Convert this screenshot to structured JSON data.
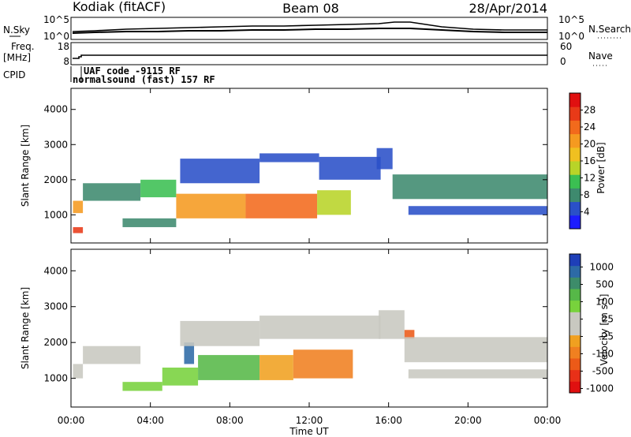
{
  "header": {
    "station": "Kodiak (fitACF)",
    "beam": "Beam 08",
    "date": "28/Apr/2014"
  },
  "noise_panel": {
    "left_label": "N.Sky",
    "right_label": "N.Search",
    "left_ticks": [
      "10^5",
      "10^0"
    ],
    "right_ticks": [
      "10^5",
      "10^0"
    ]
  },
  "freq_panel": {
    "left_label_1": "Freq.",
    "left_label_2": "[MHz]",
    "right_label": "Nave",
    "left_ticks": [
      "18",
      "8"
    ],
    "right_ticks": [
      "60",
      "0"
    ]
  },
  "cpid_panel": {
    "label": "CPID",
    "line1": "UAF code -9115 RF",
    "line2": "normalsound (fast) 157 RF"
  },
  "chart_data": [
    {
      "type": "heatmap",
      "quantity": "power",
      "ylabel": "Slant Range [km]",
      "ylim": [
        200,
        4600
      ],
      "yticks": [
        1000,
        2000,
        3000,
        4000
      ],
      "colorbar_label": "Power [dB]",
      "colorbar_ticks": [
        4,
        8,
        12,
        16,
        20,
        24,
        28
      ],
      "colorbar_colors": [
        "#1c1cff",
        "#2a50c8",
        "#3e8a6e",
        "#3bbf52",
        "#b8d428",
        "#f0c020",
        "#f59a20",
        "#f26a1c",
        "#e83a18",
        "#e01010"
      ],
      "regions": [
        {
          "x": [
            0.1,
            0.6
          ],
          "y": [
            1050,
            1400
          ],
          "level": 22
        },
        {
          "x": [
            0.1,
            0.6
          ],
          "y": [
            480,
            650
          ],
          "level": 27
        },
        {
          "x": [
            0.6,
            3.5
          ],
          "y": [
            1400,
            1900
          ],
          "level": 8
        },
        {
          "x": [
            3.5,
            5.3
          ],
          "y": [
            1500,
            2000
          ],
          "level": 12
        },
        {
          "x": [
            2.6,
            5.3
          ],
          "y": [
            650,
            900
          ],
          "level": 10
        },
        {
          "x": [
            5.3,
            8.8
          ],
          "y": [
            900,
            1600
          ],
          "level": 22
        },
        {
          "x": [
            8.8,
            12.4
          ],
          "y": [
            900,
            1600
          ],
          "level": 24
        },
        {
          "x": [
            12.4,
            14.1
          ],
          "y": [
            1000,
            1700
          ],
          "level": 14
        },
        {
          "x": [
            5.5,
            9.5
          ],
          "y": [
            1900,
            2600
          ],
          "level": 6
        },
        {
          "x": [
            9.5,
            12.5
          ],
          "y": [
            2500,
            2750
          ],
          "level": 7
        },
        {
          "x": [
            12.5,
            15.6
          ],
          "y": [
            2000,
            2650
          ],
          "level": 6
        },
        {
          "x": [
            15.4,
            16.2
          ],
          "y": [
            2300,
            2900
          ],
          "level": 6
        },
        {
          "x": [
            16.2,
            24.0
          ],
          "y": [
            1450,
            2150
          ],
          "level": 8
        },
        {
          "x": [
            17.0,
            24.0
          ],
          "y": [
            1000,
            1250
          ],
          "level": 7
        }
      ]
    },
    {
      "type": "heatmap",
      "quantity": "velocity",
      "ylabel": "Slant Range [km]",
      "ylim": [
        200,
        4600
      ],
      "yticks": [
        1000,
        2000,
        3000,
        4000
      ],
      "colorbar_label": "Velocity [m s^-1]",
      "colorbar_ticks": [
        "1000",
        "500",
        "100",
        "25",
        "-25",
        "-100",
        "-500",
        "-1000"
      ],
      "colorbar_colors": [
        "#1e3fb8",
        "#2d6aa6",
        "#3d8c6a",
        "#56b848",
        "#78d23c",
        "#c8c8c0",
        "#c8c8c0",
        "#f0a020",
        "#f08020",
        "#ec5a18",
        "#e83018",
        "#e01010"
      ],
      "regions": [
        {
          "x": [
            0.1,
            0.6
          ],
          "y": [
            1000,
            1400
          ],
          "velocity": 0
        },
        {
          "x": [
            0.6,
            3.5
          ],
          "y": [
            1400,
            1900
          ],
          "velocity": 0
        },
        {
          "x": [
            2.6,
            4.6
          ],
          "y": [
            650,
            900
          ],
          "velocity": 150
        },
        {
          "x": [
            4.6,
            6.4
          ],
          "y": [
            800,
            1300
          ],
          "velocity": 200
        },
        {
          "x": [
            5.7,
            6.2
          ],
          "y": [
            1400,
            2000
          ],
          "velocity": 900
        },
        {
          "x": [
            6.4,
            9.5
          ],
          "y": [
            950,
            1650
          ],
          "velocity": 350
        },
        {
          "x": [
            9.5,
            11.2
          ],
          "y": [
            950,
            1650
          ],
          "velocity": -100
        },
        {
          "x": [
            11.2,
            14.2
          ],
          "y": [
            1000,
            1800
          ],
          "velocity": -300
        },
        {
          "x": [
            5.5,
            9.5
          ],
          "y": [
            1900,
            2600
          ],
          "velocity": 0
        },
        {
          "x": [
            9.5,
            15.6
          ],
          "y": [
            2100,
            2750
          ],
          "velocity": 0
        },
        {
          "x": [
            15.5,
            16.8
          ],
          "y": [
            2100,
            2900
          ],
          "velocity": 0
        },
        {
          "x": [
            16.8,
            17.3
          ],
          "y": [
            2100,
            2350
          ],
          "velocity": -400
        },
        {
          "x": [
            16.8,
            24.0
          ],
          "y": [
            1450,
            2150
          ],
          "velocity": 0
        },
        {
          "x": [
            17.0,
            24.0
          ],
          "y": [
            1000,
            1250
          ],
          "velocity": 0
        }
      ]
    }
  ],
  "x_axis": {
    "label": "Time UT",
    "ticks": [
      "00:00",
      "04:00",
      "08:00",
      "12:00",
      "16:00",
      "20:00",
      "00:00"
    ],
    "xlim": [
      0,
      24
    ]
  }
}
